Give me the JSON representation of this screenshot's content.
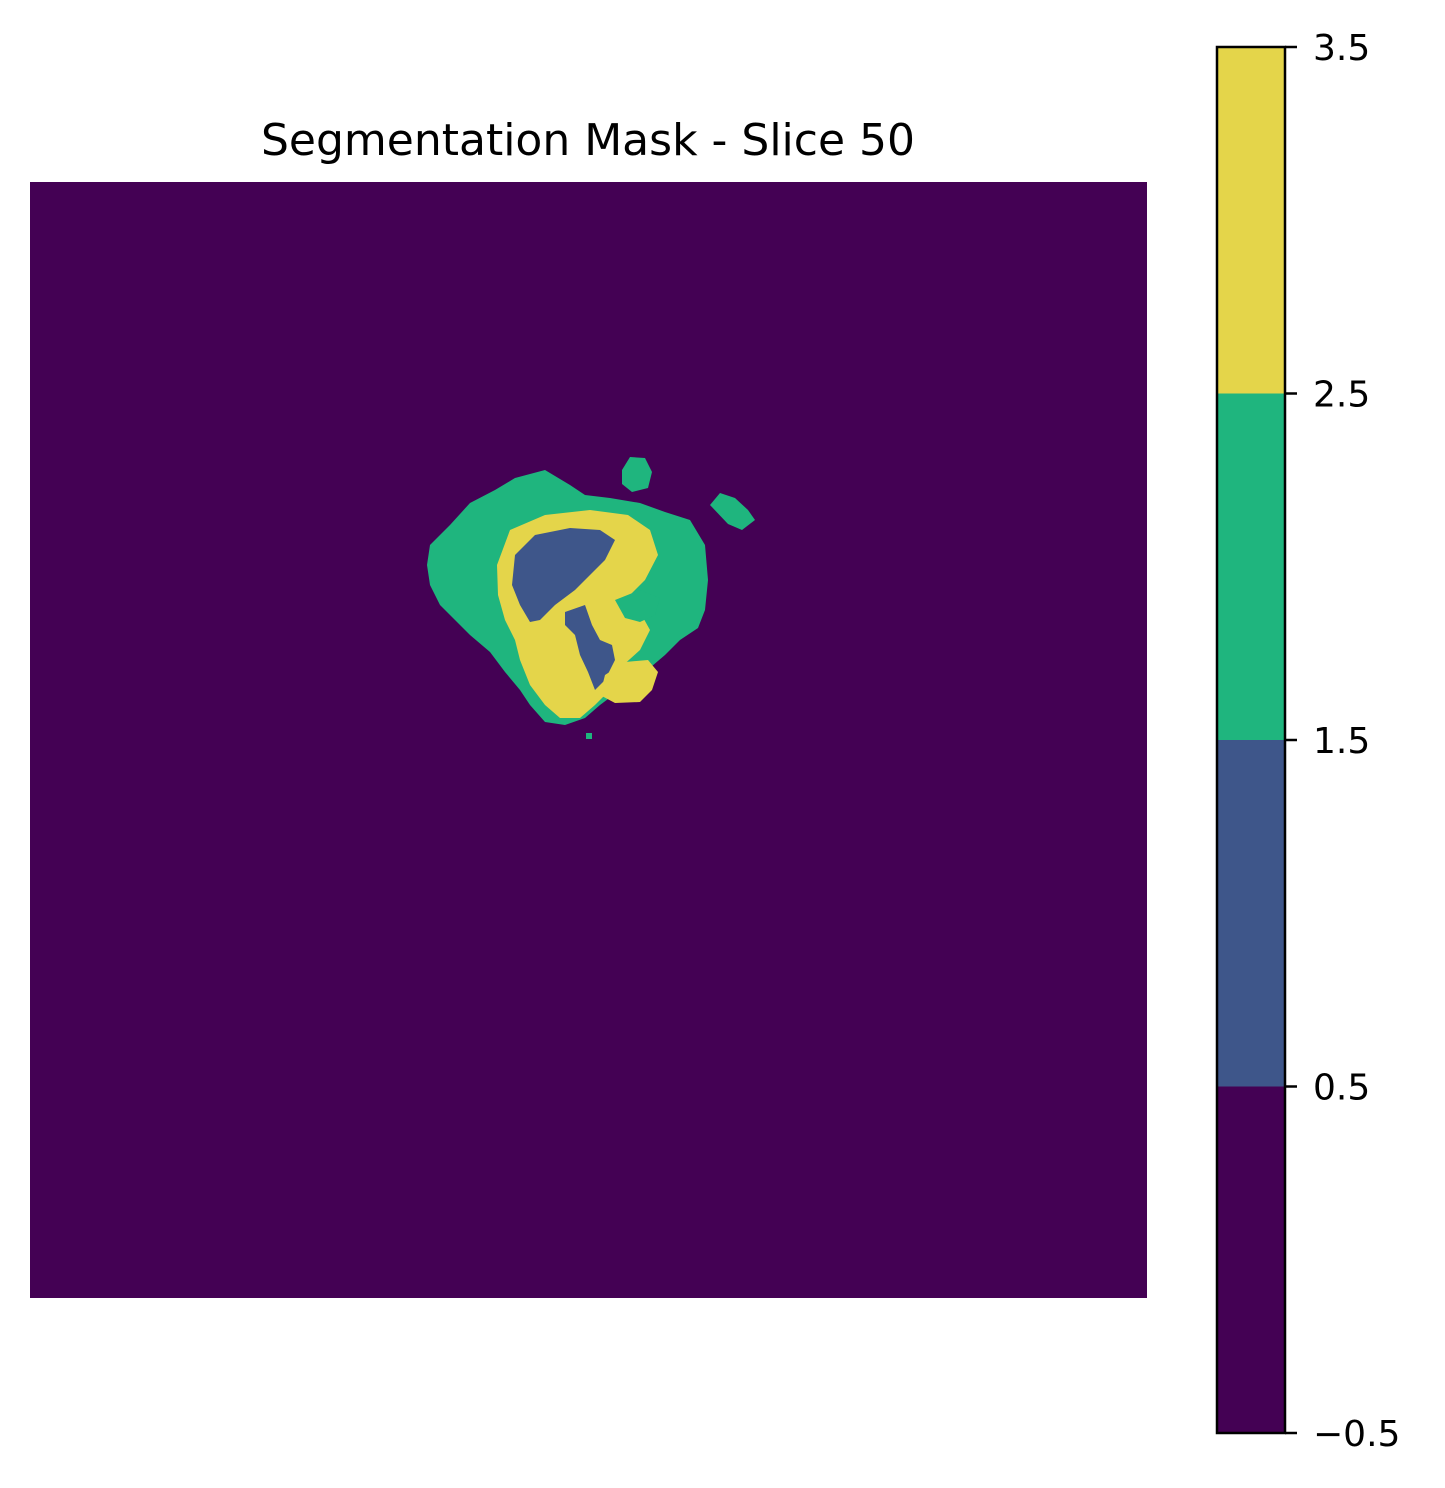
{
  "chart_data": {
    "type": "heatmap",
    "title": "Segmentation Mask - Slice 50",
    "xlabel": "",
    "ylabel": "",
    "axes_visible": false,
    "grid": false,
    "image": {
      "background_label": 0,
      "regions": [
        {
          "label": 2,
          "kind": "outer tissue ring",
          "color": "#1fb57e"
        },
        {
          "label": 3,
          "kind": "inner ring",
          "color": "#e4d54a"
        },
        {
          "label": 1,
          "kind": "cavity",
          "color": "#3e568a"
        },
        {
          "label": 3,
          "kind": "small blob",
          "color": "#e4d54a"
        },
        {
          "label": 2,
          "kind": "satellite islands",
          "color": "#1fb57e"
        }
      ]
    },
    "colorbar": {
      "position": "right",
      "range": [
        -0.5,
        3.5
      ],
      "ticks": [
        3.5,
        2.5,
        1.5,
        0.5,
        -0.5
      ],
      "tick_labels": [
        "3.5",
        "2.5",
        "1.5",
        "0.5",
        "−0.5"
      ],
      "levels": [
        {
          "value": 0,
          "color": "#440154"
        },
        {
          "value": 1,
          "color": "#3e568a"
        },
        {
          "value": 2,
          "color": "#1fb57e"
        },
        {
          "value": 3,
          "color": "#e4d54a"
        }
      ]
    }
  }
}
